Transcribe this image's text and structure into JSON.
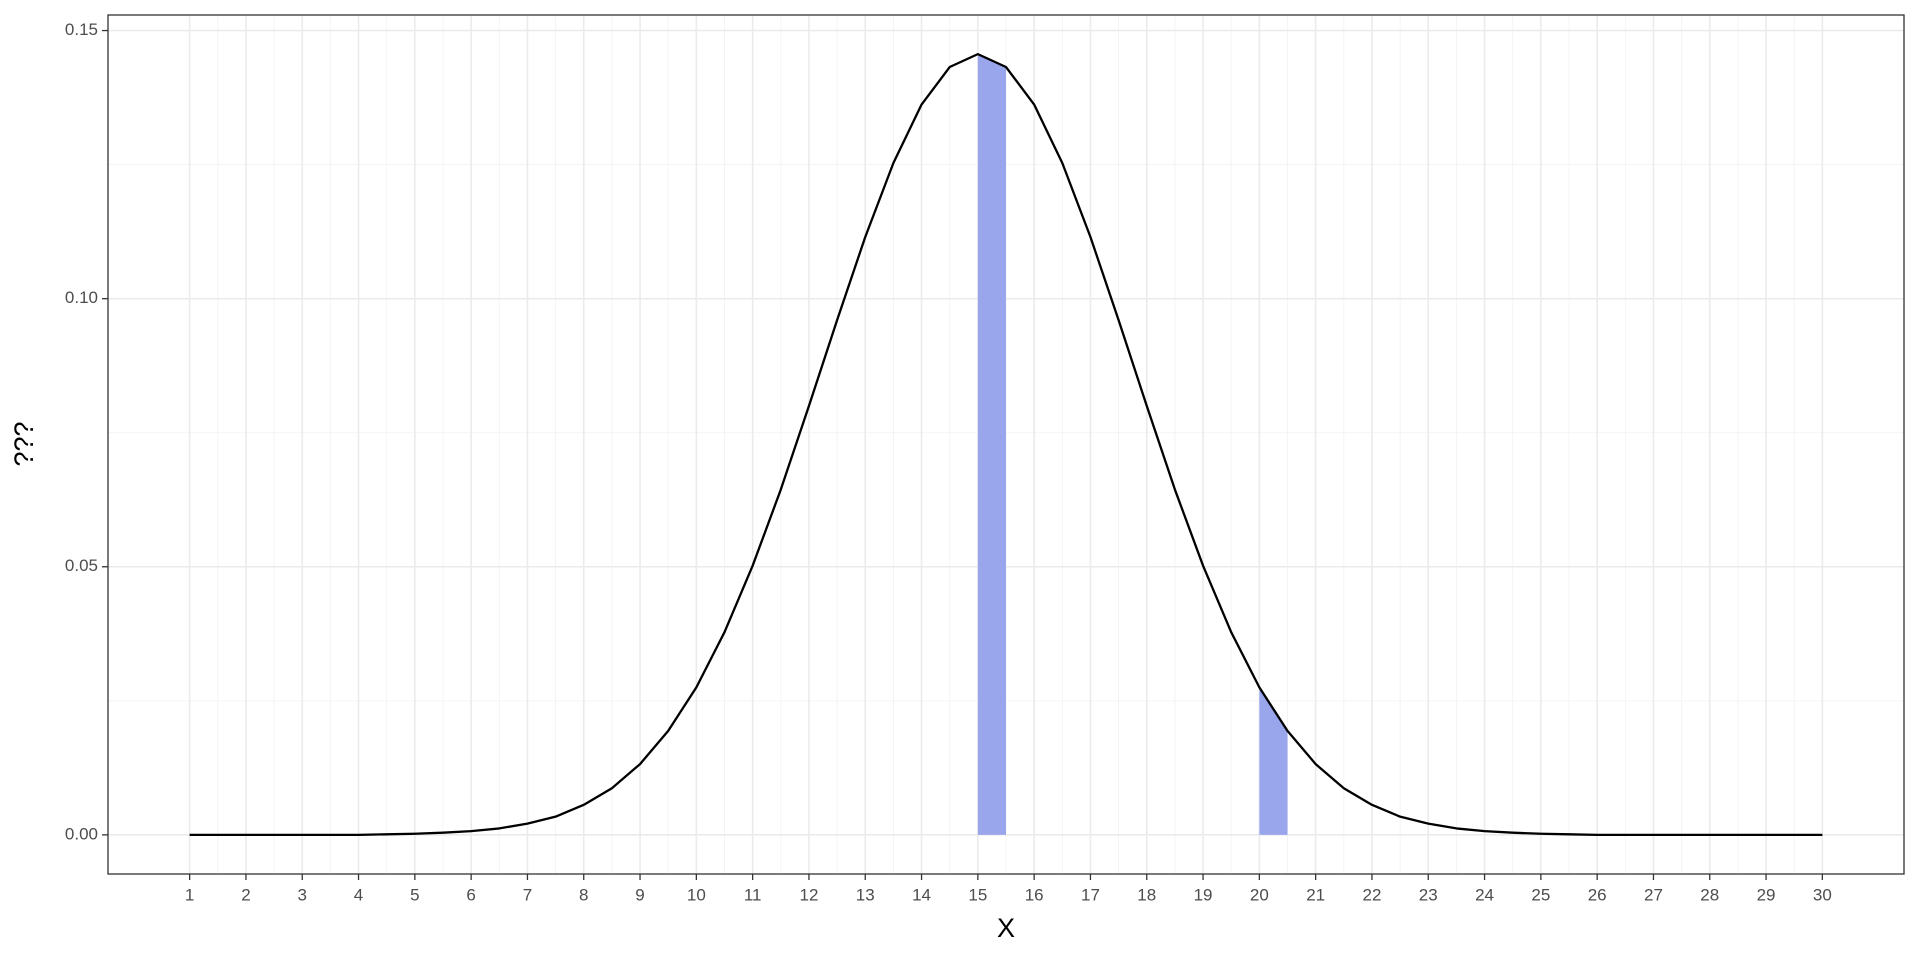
{
  "chart_data": {
    "type": "line",
    "x_label": "X",
    "y_label": "???",
    "x": [
      1,
      1.5,
      2,
      2.5,
      3,
      3.5,
      4,
      4.5,
      5,
      5.5,
      6,
      6.5,
      7,
      7.5,
      8,
      8.5,
      9,
      9.5,
      10,
      10.5,
      11,
      11.5,
      12,
      12.5,
      13,
      13.5,
      14,
      14.5,
      15,
      15.5,
      16,
      16.5,
      17,
      17.5,
      18,
      18.5,
      19,
      19.5,
      20,
      20.5,
      21,
      21.5,
      22,
      22.5,
      23,
      23.5,
      24,
      24.5,
      25,
      25.5,
      26,
      26.5,
      27,
      27.5,
      28,
      28.5,
      29,
      29.5,
      30
    ],
    "values": [
      0,
      0,
      0,
      0,
      0,
      0,
      0,
      0.0001,
      0.0002,
      0.0004,
      0.0007,
      0.0012,
      0.0021,
      0.0034,
      0.0056,
      0.0087,
      0.0132,
      0.0194,
      0.0275,
      0.0378,
      0.0502,
      0.0644,
      0.08,
      0.096,
      0.1115,
      0.1253,
      0.1362,
      0.1432,
      0.1456,
      0.1432,
      0.1362,
      0.1253,
      0.1115,
      0.096,
      0.08,
      0.0644,
      0.0502,
      0.0378,
      0.0275,
      0.0194,
      0.0132,
      0.0087,
      0.0056,
      0.0034,
      0.0021,
      0.0012,
      0.0007,
      0.0004,
      0.0002,
      0.0001,
      0,
      0,
      0,
      0,
      0,
      0,
      0,
      0,
      0
    ],
    "color": "#000000",
    "shaded": [
      [
        15,
        15.5
      ],
      [
        20,
        20.5
      ]
    ],
    "shade_color": "#99a6ec",
    "xlim": [
      -0.45,
      31.45
    ],
    "xticks": [
      1,
      2,
      3,
      4,
      5,
      6,
      7,
      8,
      9,
      10,
      11,
      12,
      13,
      14,
      15,
      16,
      17,
      18,
      19,
      20,
      21,
      22,
      23,
      24,
      25,
      26,
      27,
      28,
      29,
      30
    ],
    "ylim": [
      -0.0073,
      0.1529
    ],
    "yticks": [
      {
        "value": 0,
        "label": "0.00"
      },
      0.05,
      {
        "value": 0.1,
        "label": "0.10"
      },
      0.15
    ],
    "grid": true
  }
}
